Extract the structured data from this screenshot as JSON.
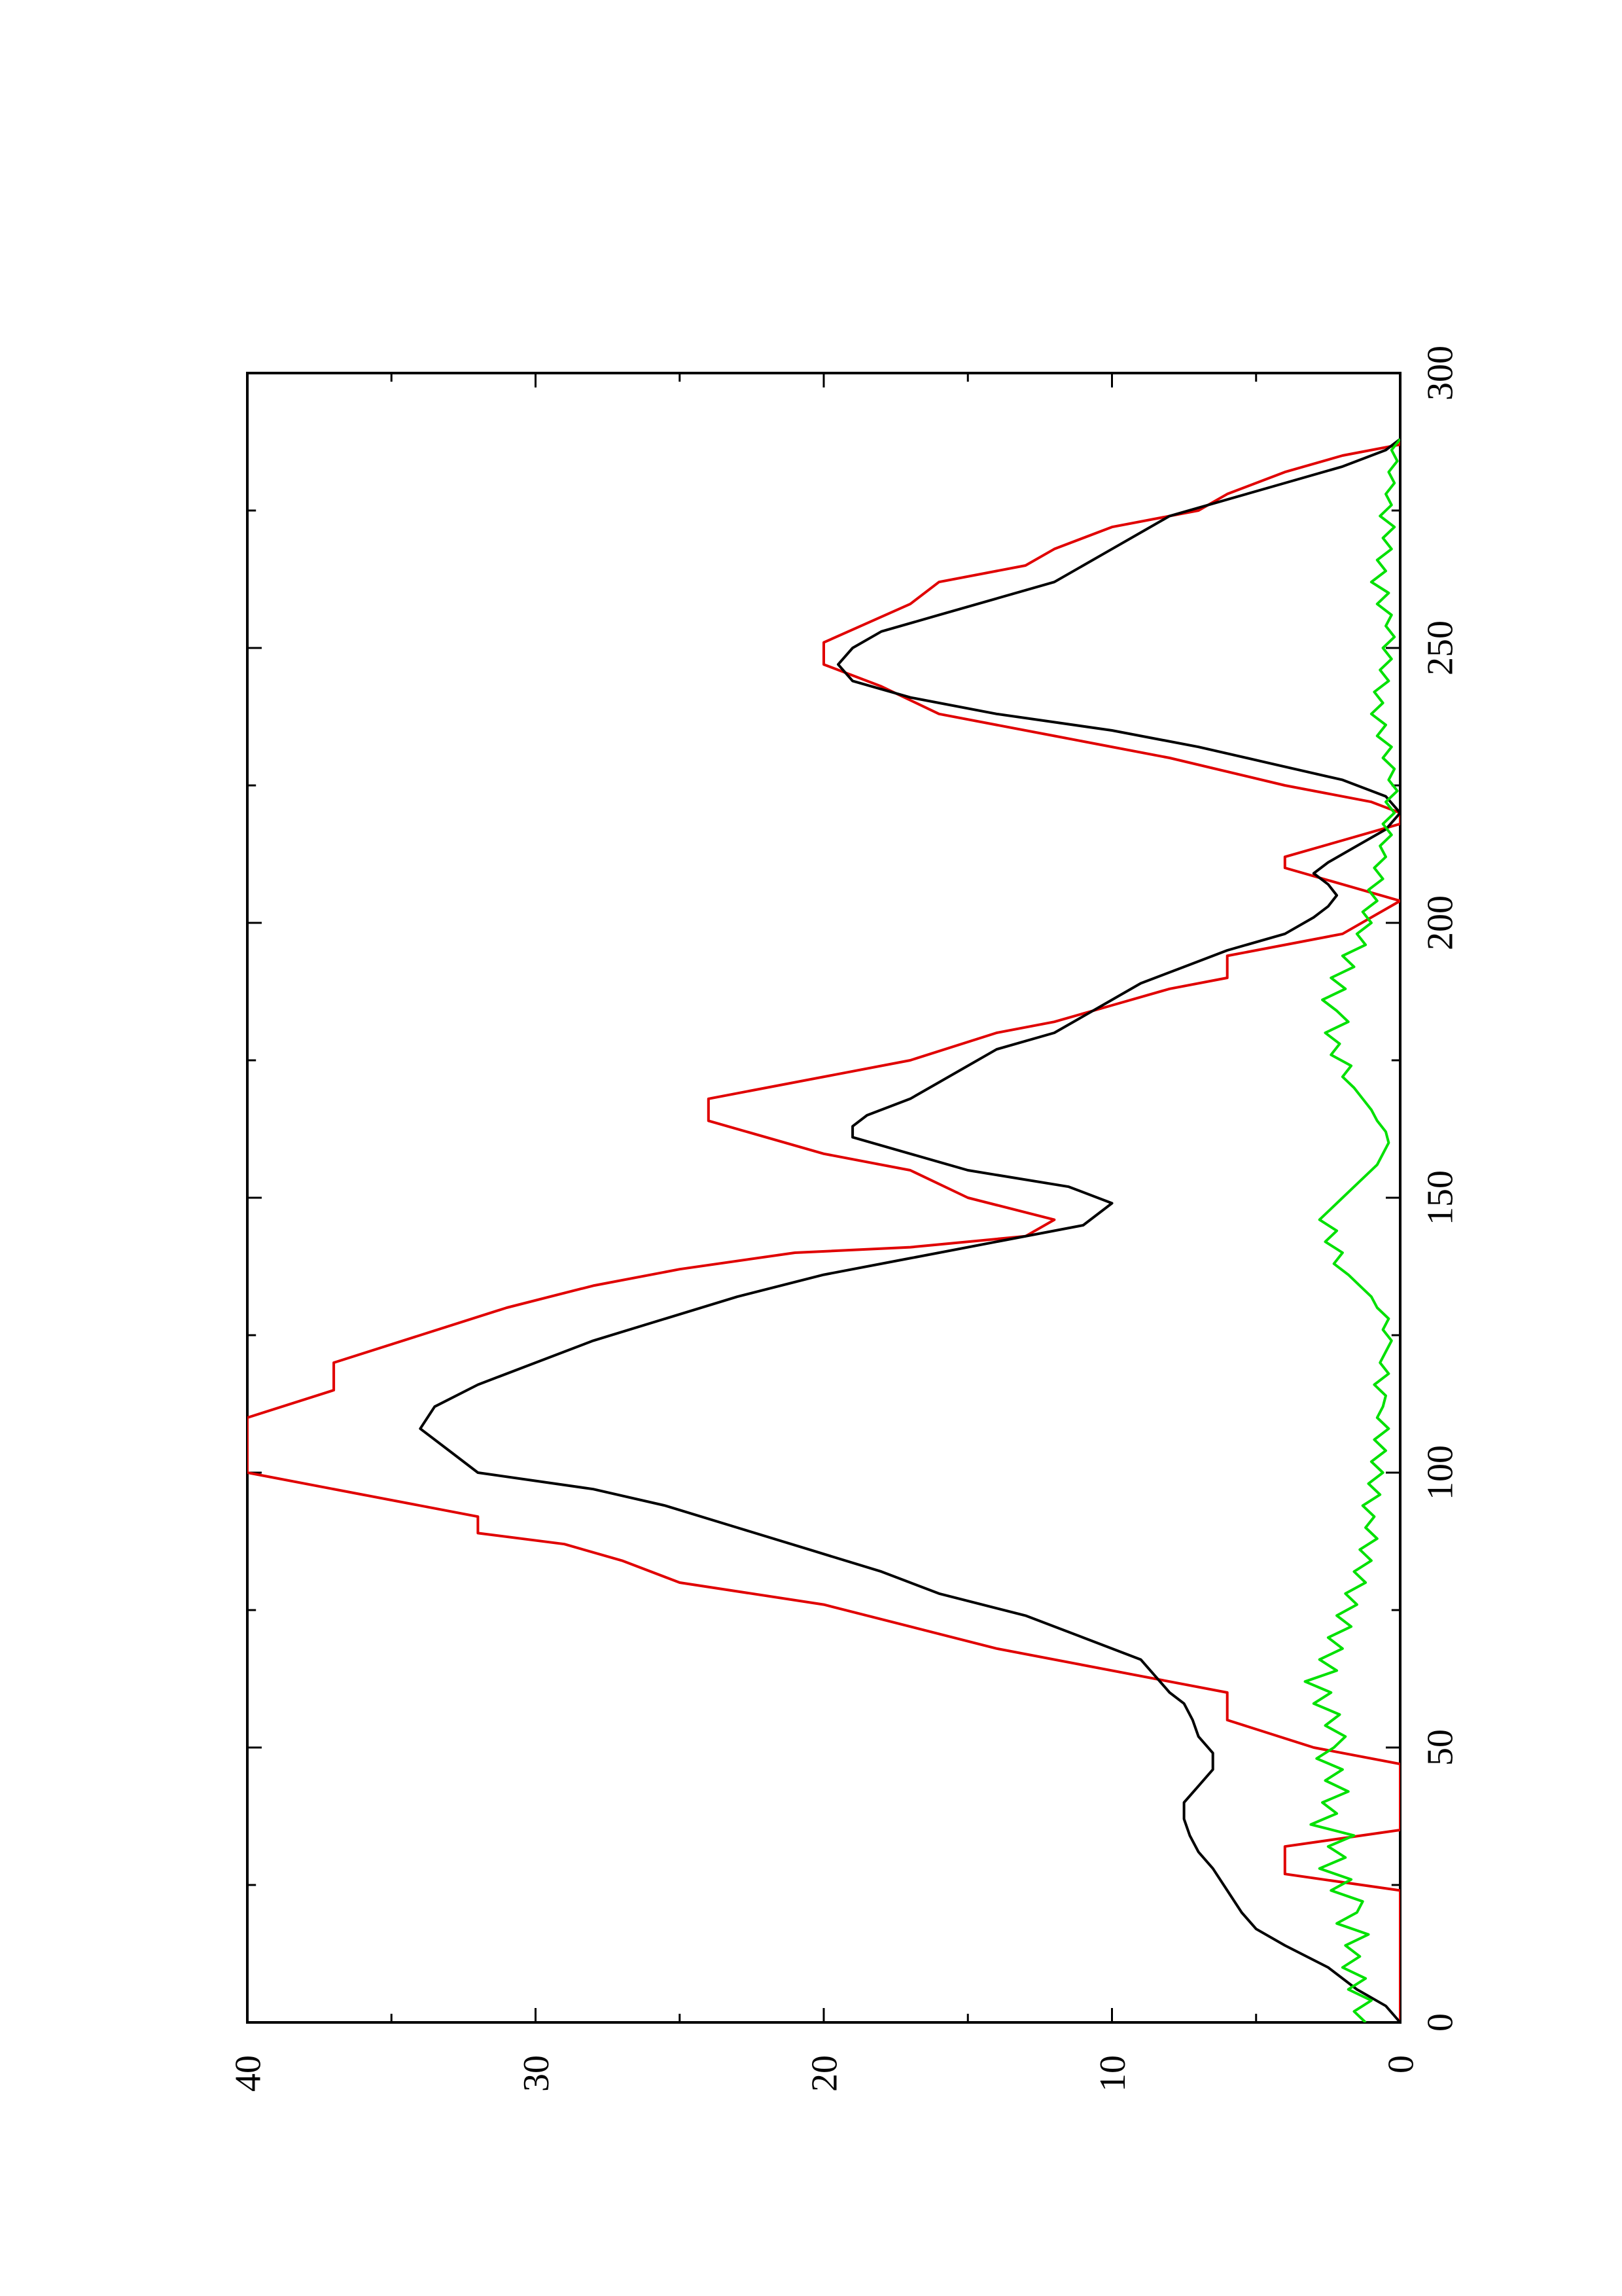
{
  "chart_data": {
    "type": "line",
    "title": "",
    "xlabel": "",
    "ylabel": "",
    "xlim": [
      0,
      300
    ],
    "ylim": [
      0,
      40
    ],
    "x_ticks": [
      0,
      50,
      100,
      150,
      200,
      250,
      300
    ],
    "y_ticks": [
      0,
      10,
      20,
      30,
      40
    ],
    "x_tick_labels": [
      "0",
      "50",
      "100",
      "150",
      "200",
      "250",
      "300"
    ],
    "y_tick_labels": [
      "0",
      "10",
      "20",
      "30",
      "40"
    ],
    "orientation": "rotated-90-ccw",
    "grid": false,
    "legend": "none",
    "series": [
      {
        "color": "#e00000",
        "x": [
          0,
          24,
          27,
          32,
          35,
          37,
          47,
          50,
          55,
          60,
          63,
          68,
          72,
          76,
          80,
          84,
          87,
          89,
          92,
          96,
          100,
          102,
          105,
          108,
          110,
          115,
          120,
          125,
          130,
          134,
          137,
          140,
          141,
          143,
          146,
          150,
          155,
          158,
          164,
          168,
          170,
          173,
          175,
          180,
          182,
          185,
          188,
          190,
          194,
          196,
          198,
          204,
          207,
          210,
          212,
          215,
          218,
          220,
          222,
          225,
          230,
          234,
          238,
          243,
          247,
          251,
          258,
          262,
          265,
          268,
          272,
          275,
          278,
          282,
          285,
          287,
          300
        ],
        "y": [
          0,
          0,
          4,
          4,
          0,
          0,
          0,
          3,
          6,
          6,
          9,
          14,
          17,
          20,
          25,
          27,
          29,
          32,
          32,
          36,
          40,
          40,
          40,
          40,
          40,
          37,
          37,
          34,
          31,
          28,
          25,
          21,
          17,
          13,
          12,
          15,
          17,
          20,
          24,
          24,
          22,
          19,
          17,
          14,
          12,
          10,
          8,
          6,
          6,
          4,
          2,
          0,
          2,
          4,
          4,
          2,
          0,
          0,
          1,
          4,
          8,
          12,
          16,
          18,
          20,
          20,
          17,
          16,
          13,
          12,
          10,
          7,
          6,
          4,
          2,
          0,
          0
        ]
      },
      {
        "color": "#000000",
        "x": [
          0,
          3,
          6,
          10,
          14,
          17,
          20,
          24,
          28,
          31,
          34,
          37,
          40,
          43,
          46,
          49,
          52,
          55,
          58,
          60,
          63,
          66,
          70,
          74,
          78,
          82,
          86,
          90,
          94,
          97,
          100,
          104,
          108,
          112,
          116,
          120,
          124,
          128,
          132,
          136,
          139,
          142,
          145,
          149,
          152,
          155,
          158,
          161,
          163,
          165,
          168,
          171,
          174,
          177,
          180,
          183,
          186,
          189,
          192,
          195,
          198,
          201,
          203,
          205,
          207,
          209,
          211,
          214,
          217,
          220,
          223,
          226,
          229,
          232,
          235,
          238,
          241,
          244,
          247,
          250,
          253,
          256,
          259,
          262,
          265,
          268,
          271,
          274,
          277,
          280,
          283,
          286,
          288,
          290,
          300
        ],
        "y": [
          0,
          0.5,
          1.5,
          2.5,
          4,
          5,
          5.5,
          6,
          6.5,
          7,
          7.3,
          7.5,
          7.5,
          7,
          6.5,
          6.5,
          7,
          7.2,
          7.5,
          8,
          8.5,
          9,
          11,
          13,
          16,
          18,
          20.5,
          23,
          25.5,
          28,
          32,
          33,
          34,
          33.5,
          32,
          30,
          28,
          25.5,
          23,
          20,
          17,
          14,
          11,
          10,
          11.5,
          15,
          17,
          19,
          19,
          18.5,
          17,
          16,
          15,
          14,
          12,
          11,
          10,
          9,
          7.5,
          6,
          4,
          3,
          2.5,
          2.2,
          2.5,
          3,
          2.5,
          1.5,
          0.5,
          0,
          0.5,
          2,
          4.5,
          7,
          10,
          14,
          17,
          19,
          19.5,
          19,
          18,
          16,
          14,
          12,
          11,
          10,
          9,
          8,
          6,
          4,
          2,
          0.5,
          0,
          0,
          0
        ]
      },
      {
        "color": "#00e000",
        "x": [
          0,
          2,
          4,
          6,
          8,
          10,
          12,
          14,
          16,
          18,
          20,
          22,
          24,
          26,
          28,
          30,
          32,
          34,
          36,
          38,
          40,
          42,
          44,
          46,
          48,
          50,
          52,
          54,
          56,
          58,
          60,
          62,
          64,
          66,
          68,
          70,
          72,
          74,
          76,
          78,
          80,
          82,
          84,
          86,
          88,
          90,
          92,
          94,
          96,
          98,
          100,
          102,
          104,
          106,
          108,
          110,
          112,
          114,
          116,
          118,
          120,
          122,
          124,
          126,
          128,
          130,
          132,
          134,
          136,
          138,
          140,
          142,
          144,
          146,
          148,
          150,
          152,
          154,
          156,
          158,
          160,
          162,
          164,
          166,
          168,
          170,
          172,
          174,
          176,
          178,
          180,
          182,
          184,
          186,
          188,
          190,
          192,
          194,
          196,
          198,
          200,
          202,
          204,
          206,
          208,
          210,
          212,
          214,
          216,
          218,
          220,
          222,
          224,
          226,
          228,
          230,
          232,
          234,
          236,
          238,
          240,
          242,
          244,
          246,
          248,
          250,
          252,
          254,
          256,
          258,
          260,
          262,
          264,
          266,
          268,
          270,
          272,
          274,
          276,
          278,
          280,
          282,
          284,
          286,
          288
        ],
        "y": [
          1.2,
          1.6,
          1.0,
          1.8,
          1.2,
          2.0,
          1.4,
          1.9,
          1.1,
          2.2,
          1.5,
          1.3,
          2.4,
          1.7,
          2.8,
          1.9,
          2.5,
          1.6,
          3.1,
          2.2,
          2.7,
          1.8,
          2.6,
          2.0,
          2.9,
          2.3,
          1.9,
          2.6,
          2.1,
          3.0,
          2.4,
          3.3,
          2.2,
          2.8,
          2.0,
          2.5,
          1.7,
          2.2,
          1.5,
          1.9,
          1.2,
          1.6,
          1.0,
          1.4,
          0.8,
          1.2,
          0.9,
          1.3,
          0.7,
          1.1,
          0.6,
          1.0,
          0.5,
          0.9,
          0.4,
          0.8,
          0.6,
          0.5,
          0.9,
          0.4,
          0.7,
          0.5,
          0.3,
          0.6,
          0.4,
          0.8,
          1.0,
          1.4,
          1.8,
          2.3,
          2.0,
          2.6,
          2.2,
          2.8,
          2.4,
          2.0,
          1.6,
          1.2,
          0.8,
          0.6,
          0.4,
          0.5,
          0.8,
          1.0,
          1.3,
          1.6,
          2.0,
          1.7,
          2.4,
          2.1,
          2.6,
          1.8,
          2.2,
          2.7,
          1.9,
          2.4,
          1.6,
          2.0,
          1.2,
          1.5,
          1.0,
          1.3,
          0.8,
          1.1,
          0.6,
          0.9,
          0.5,
          0.7,
          0.3,
          0.6,
          0.2,
          0.5,
          0.1,
          0.4,
          0.2,
          0.6,
          0.3,
          0.8,
          0.5,
          1.0,
          0.6,
          0.9,
          0.4,
          0.7,
          0.3,
          0.6,
          0.2,
          0.5,
          0.3,
          0.8,
          0.4,
          1.0,
          0.5,
          0.8,
          0.3,
          0.6,
          0.2,
          0.7,
          0.3,
          0.5,
          0.2,
          0.4,
          0.1,
          0.3,
          0.0
        ]
      }
    ]
  }
}
